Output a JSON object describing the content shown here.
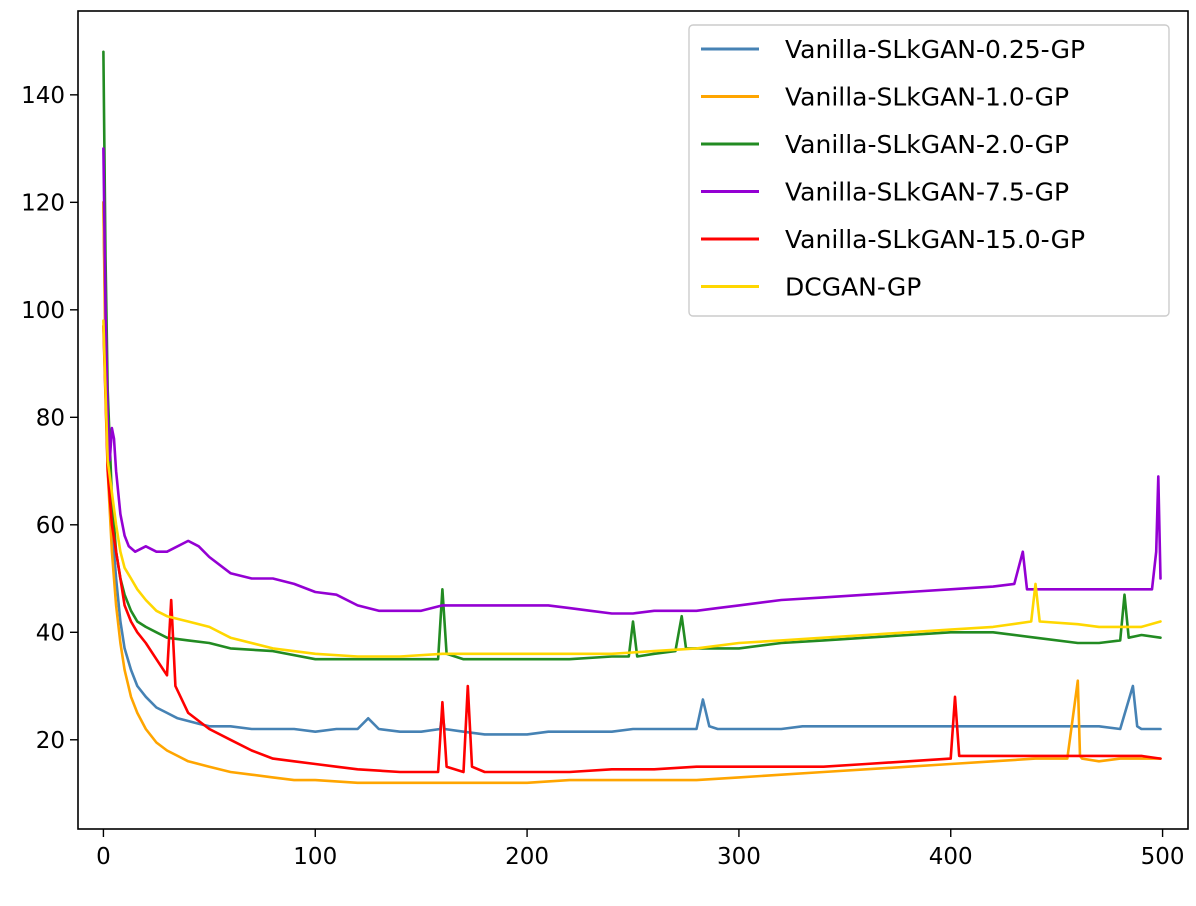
{
  "chart_data": {
    "type": "line",
    "title": "",
    "xlabel": "",
    "ylabel": "",
    "xlim": [
      -12,
      512
    ],
    "ylim": [
      3.4,
      155.6
    ],
    "xticks": [
      0,
      100,
      200,
      300,
      400,
      500
    ],
    "yticks": [
      20,
      40,
      60,
      80,
      100,
      120,
      140
    ],
    "grid": false,
    "legend_position": "top-right",
    "series": [
      {
        "name": "Vanilla-SLkGAN-0.25-GP",
        "color": "#4682b4",
        "x": [
          0,
          1,
          2,
          4,
          6,
          8,
          10,
          13,
          16,
          20,
          25,
          30,
          35,
          40,
          45,
          50,
          60,
          70,
          80,
          90,
          100,
          110,
          120,
          125,
          130,
          140,
          150,
          159,
          160,
          161,
          170,
          180,
          190,
          200,
          210,
          220,
          230,
          240,
          250,
          260,
          270,
          280,
          283,
          286,
          290,
          300,
          310,
          320,
          330,
          340,
          350,
          360,
          370,
          380,
          390,
          400,
          410,
          420,
          430,
          440,
          450,
          460,
          470,
          480,
          486,
          488,
          490,
          495,
          499
        ],
        "values": [
          120,
          95,
          75,
          60,
          50,
          42,
          37,
          33,
          30,
          28,
          26,
          25,
          24,
          23.5,
          23,
          22.5,
          22.5,
          22,
          22,
          22,
          21.5,
          22,
          22,
          24,
          22,
          21.5,
          21.5,
          22,
          25,
          22,
          21.5,
          21,
          21,
          21,
          21.5,
          21.5,
          21.5,
          21.5,
          22,
          22,
          22,
          22,
          27.5,
          22.5,
          22,
          22,
          22,
          22,
          22.5,
          22.5,
          22.5,
          22.5,
          22.5,
          22.5,
          22.5,
          22.5,
          22.5,
          22.5,
          22.5,
          22.5,
          22.5,
          22.5,
          22.5,
          22,
          30,
          22.5,
          22,
          22,
          22
        ]
      },
      {
        "name": "Vanilla-SLkGAN-1.0-GP",
        "color": "#ffa500",
        "x": [
          0,
          1,
          2,
          4,
          6,
          8,
          10,
          13,
          16,
          20,
          25,
          30,
          35,
          40,
          50,
          60,
          70,
          80,
          90,
          100,
          120,
          140,
          160,
          180,
          200,
          220,
          240,
          260,
          280,
          300,
          320,
          340,
          360,
          380,
          400,
          420,
          440,
          455,
          460,
          461,
          462,
          470,
          480,
          490,
          499
        ],
        "values": [
          120,
          90,
          70,
          55,
          45,
          38,
          33,
          28,
          25,
          22,
          19.5,
          18,
          17,
          16,
          15,
          14,
          13.5,
          13,
          12.5,
          12.5,
          12,
          12,
          12,
          12,
          12,
          12.5,
          12.5,
          12.5,
          12.5,
          13,
          13.5,
          14,
          14.5,
          15,
          15.5,
          16,
          16.5,
          16.5,
          31,
          17,
          16.5,
          16,
          16.5,
          16.5,
          16.5
        ]
      },
      {
        "name": "Vanilla-SLkGAN-2.0-GP",
        "color": "#228b22",
        "x": [
          0,
          1,
          2,
          4,
          6,
          8,
          10,
          13,
          16,
          20,
          25,
          30,
          40,
          50,
          60,
          80,
          100,
          120,
          140,
          158,
          160,
          162,
          170,
          180,
          200,
          220,
          240,
          248,
          250,
          252,
          260,
          270,
          273,
          275,
          280,
          300,
          320,
          340,
          360,
          380,
          400,
          420,
          440,
          460,
          470,
          480,
          482,
          484,
          490,
          499
        ],
        "values": [
          148,
          110,
          85,
          65,
          55,
          50,
          47,
          44,
          42,
          41,
          40,
          39,
          38.5,
          38,
          37,
          36.5,
          35,
          35,
          35,
          35,
          48,
          36,
          35,
          35,
          35,
          35,
          35.5,
          35.5,
          42,
          35.5,
          36,
          36.5,
          43,
          37,
          37,
          37,
          38,
          38.5,
          39,
          39.5,
          40,
          40,
          39,
          38,
          38,
          38.5,
          47,
          39,
          39.5,
          39
        ]
      },
      {
        "name": "Vanilla-SLkGAN-7.5-GP",
        "color": "#9400d3",
        "x": [
          0,
          1,
          2,
          3,
          4,
          5,
          6,
          8,
          10,
          12,
          15,
          20,
          25,
          30,
          40,
          45,
          50,
          60,
          70,
          80,
          90,
          100,
          110,
          120,
          130,
          140,
          150,
          160,
          170,
          180,
          190,
          200,
          210,
          220,
          230,
          240,
          250,
          260,
          270,
          280,
          290,
          300,
          320,
          340,
          360,
          380,
          400,
          420,
          430,
          434,
          436,
          440,
          450,
          460,
          470,
          480,
          490,
          495,
          497,
          498,
          499
        ],
        "values": [
          130,
          100,
          80,
          72,
          78,
          76,
          70,
          62,
          58,
          56,
          55,
          56,
          55,
          55,
          57,
          56,
          54,
          51,
          50,
          50,
          49,
          47.5,
          47,
          45,
          44,
          44,
          44,
          45,
          45,
          45,
          45,
          45,
          45,
          44.5,
          44,
          43.5,
          43.5,
          44,
          44,
          44,
          44.5,
          45,
          46,
          46.5,
          47,
          47.5,
          48,
          48.5,
          49,
          55,
          48,
          48,
          48,
          48,
          48,
          48,
          48,
          48,
          55,
          69,
          50
        ]
      },
      {
        "name": "Vanilla-SLkGAN-15.0-GP",
        "color": "#ff0000",
        "x": [
          0,
          2,
          4,
          6,
          8,
          10,
          13,
          16,
          20,
          25,
          30,
          32,
          34,
          40,
          50,
          60,
          70,
          80,
          90,
          100,
          110,
          120,
          140,
          150,
          158,
          160,
          162,
          170,
          172,
          174,
          180,
          200,
          220,
          240,
          260,
          280,
          300,
          320,
          340,
          360,
          380,
          400,
          402,
          404,
          420,
          440,
          460,
          470,
          480,
          490,
          499
        ],
        "values": [
          97,
          70,
          60,
          55,
          50,
          45,
          42,
          40,
          38,
          35,
          32,
          46,
          30,
          25,
          22,
          20,
          18,
          16.5,
          16,
          15.5,
          15,
          14.5,
          14,
          14,
          14,
          27,
          15,
          14,
          30,
          15,
          14,
          14,
          14,
          14.5,
          14.5,
          15,
          15,
          15,
          15,
          15.5,
          16,
          16.5,
          28,
          17,
          17,
          17,
          17,
          17,
          17,
          17,
          16.5
        ]
      },
      {
        "name": "DCGAN-GP",
        "color": "#ffd700",
        "x": [
          0,
          1,
          2,
          4,
          6,
          8,
          10,
          13,
          16,
          20,
          25,
          30,
          40,
          50,
          60,
          80,
          100,
          120,
          140,
          160,
          180,
          200,
          220,
          240,
          260,
          280,
          300,
          320,
          340,
          360,
          380,
          400,
          420,
          438,
          440,
          442,
          460,
          470,
          480,
          490,
          499
        ],
        "values": [
          98,
          85,
          72,
          66,
          60,
          55,
          52,
          50,
          48,
          46,
          44,
          43,
          42,
          41,
          39,
          37,
          36,
          35.5,
          35.5,
          36,
          36,
          36,
          36,
          36,
          36.5,
          37,
          38,
          38.5,
          39,
          39.5,
          40,
          40.5,
          41,
          42,
          49,
          42,
          41.5,
          41,
          41,
          41,
          42
        ]
      }
    ]
  }
}
